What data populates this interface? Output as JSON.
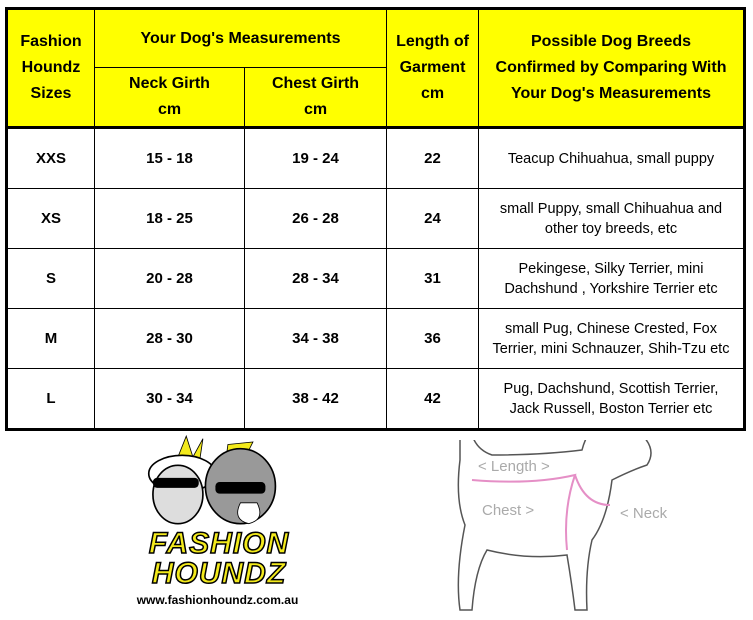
{
  "table": {
    "headers": {
      "sizes": [
        "Fashion",
        "Houndz",
        "Sizes"
      ],
      "measurements": "Your Dog's Measurements",
      "neck": [
        "Neck Girth",
        "cm"
      ],
      "chest": [
        "Chest Girth",
        "cm"
      ],
      "length": [
        "Length of",
        "Garment",
        "cm"
      ],
      "breeds": [
        "Possible Dog Breeds",
        "Confirmed by Comparing With",
        "Your Dog's Measurements"
      ]
    },
    "rows": [
      {
        "size": "XXS",
        "neck": "15 - 18",
        "chest": "19 - 24",
        "length": "22",
        "breeds": [
          "Teacup Chihuahua, small puppy"
        ]
      },
      {
        "size": "XS",
        "neck": "18 - 25",
        "chest": "26 - 28",
        "length": "24",
        "breeds": [
          "small Puppy, small Chihuahua and",
          "other toy breeds, etc"
        ]
      },
      {
        "size": "S",
        "neck": "20 - 28",
        "chest": "28 - 34",
        "length": "31",
        "breeds": [
          "Pekingese, Silky Terrier, mini",
          "Dachshund , Yorkshire Terrier etc"
        ]
      },
      {
        "size": "M",
        "neck": "28 - 30",
        "chest": "34 - 38",
        "length": "36",
        "breeds": [
          "small Pug, Chinese Crested, Fox",
          "Terrier, mini Schnauzer, Shih-Tzu etc"
        ]
      },
      {
        "size": "L",
        "neck": "30 - 34",
        "chest": "38 - 42",
        "length": "42",
        "breeds": [
          "Pug, Dachshund, Scottish Terrier,",
          "Jack Russell, Boston Terrier etc"
        ]
      }
    ]
  },
  "logo": {
    "line1": "FASHION",
    "line2": "HOUNDZ",
    "url": "www.fashionhoundz.com.au"
  },
  "diagram": {
    "length": "< Length >",
    "chest": "Chest >",
    "neck": "< Neck"
  },
  "colors": {
    "header_bg": "#ffff00",
    "measure_line": "#e58fc6",
    "logo_yellow": "#f3ea1c"
  }
}
